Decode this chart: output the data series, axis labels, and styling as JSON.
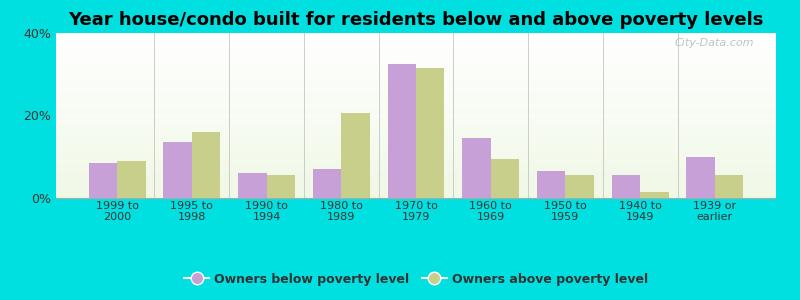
{
  "title": "Year house/condo built for residents below and above poverty levels",
  "categories": [
    "1999 to\n2000",
    "1995 to\n1998",
    "1990 to\n1994",
    "1980 to\n1989",
    "1970 to\n1979",
    "1960 to\n1969",
    "1950 to\n1959",
    "1940 to\n1949",
    "1939 or\nearlier"
  ],
  "below_poverty": [
    8.5,
    13.5,
    6.0,
    7.0,
    32.5,
    14.5,
    6.5,
    5.5,
    10.0
  ],
  "above_poverty": [
    9.0,
    16.0,
    5.5,
    20.5,
    31.5,
    9.5,
    5.5,
    1.5,
    5.5
  ],
  "below_color": "#c8a0d8",
  "above_color": "#c8cf8a",
  "ylim": [
    0,
    40
  ],
  "yticks": [
    0,
    20,
    40
  ],
  "ytick_labels": [
    "0%",
    "20%",
    "40%"
  ],
  "background_outer": "#00e0e0",
  "title_fontsize": 13,
  "legend_below_label": "Owners below poverty level",
  "legend_above_label": "Owners above poverty level",
  "bar_width": 0.38,
  "watermark": "City-Data.com"
}
